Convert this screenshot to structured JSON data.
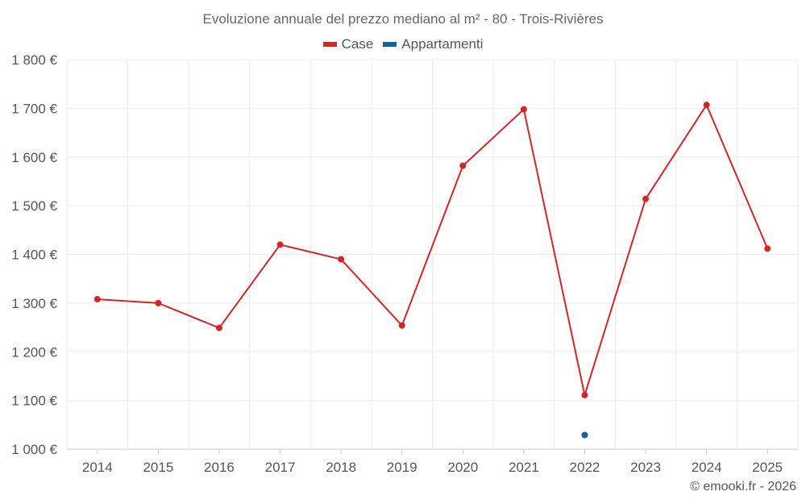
{
  "chart_data": {
    "type": "line",
    "title": "Evoluzione annuale del prezzo mediano al m² - 80 - Trois-Rivières",
    "categories": [
      "2014",
      "2015",
      "2016",
      "2017",
      "2018",
      "2019",
      "2020",
      "2021",
      "2022",
      "2023",
      "2024",
      "2025"
    ],
    "series": [
      {
        "name": "Case",
        "color": "#d32626",
        "values": [
          1308,
          1300,
          1249,
          1420,
          1390,
          1254,
          1582,
          1698,
          1111,
          1514,
          1707,
          1412
        ]
      },
      {
        "name": "Appartamenti",
        "color": "#0b62a4",
        "values": [
          null,
          null,
          null,
          null,
          null,
          null,
          null,
          null,
          1029,
          null,
          null,
          null
        ]
      }
    ],
    "y_ticks": [
      "1 000 €",
      "1 100 €",
      "1 200 €",
      "1 300 €",
      "1 400 €",
      "1 500 €",
      "1 600 €",
      "1 700 €",
      "1 800 €"
    ],
    "ylim": [
      1000,
      1800
    ],
    "xlabel": "",
    "ylabel": "",
    "grid": true,
    "legend_position": "top-center"
  },
  "credit": "© emooki.fr - 2026"
}
